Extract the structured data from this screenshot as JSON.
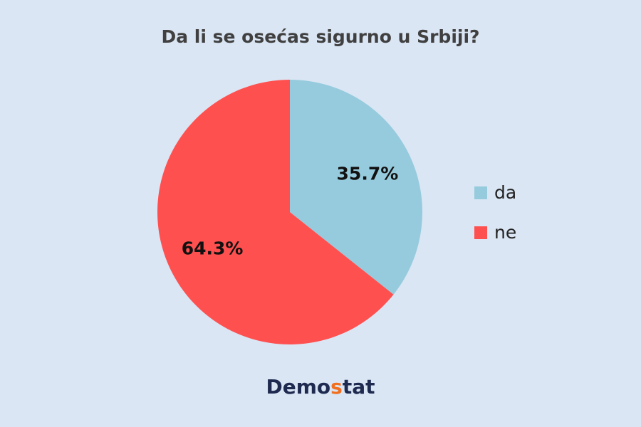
{
  "chart_data": {
    "type": "pie",
    "title": "Da li se osećas sigurno u Srbiji?",
    "categories": [
      "da",
      "ne"
    ],
    "values": [
      35.7,
      64.3
    ],
    "value_labels": [
      "35.7%",
      "64.3%"
    ],
    "colors": [
      "#96cbdd",
      "#ff5050"
    ],
    "legend": "right"
  },
  "logo": {
    "parts": [
      "Demo",
      "s",
      "tat"
    ]
  }
}
